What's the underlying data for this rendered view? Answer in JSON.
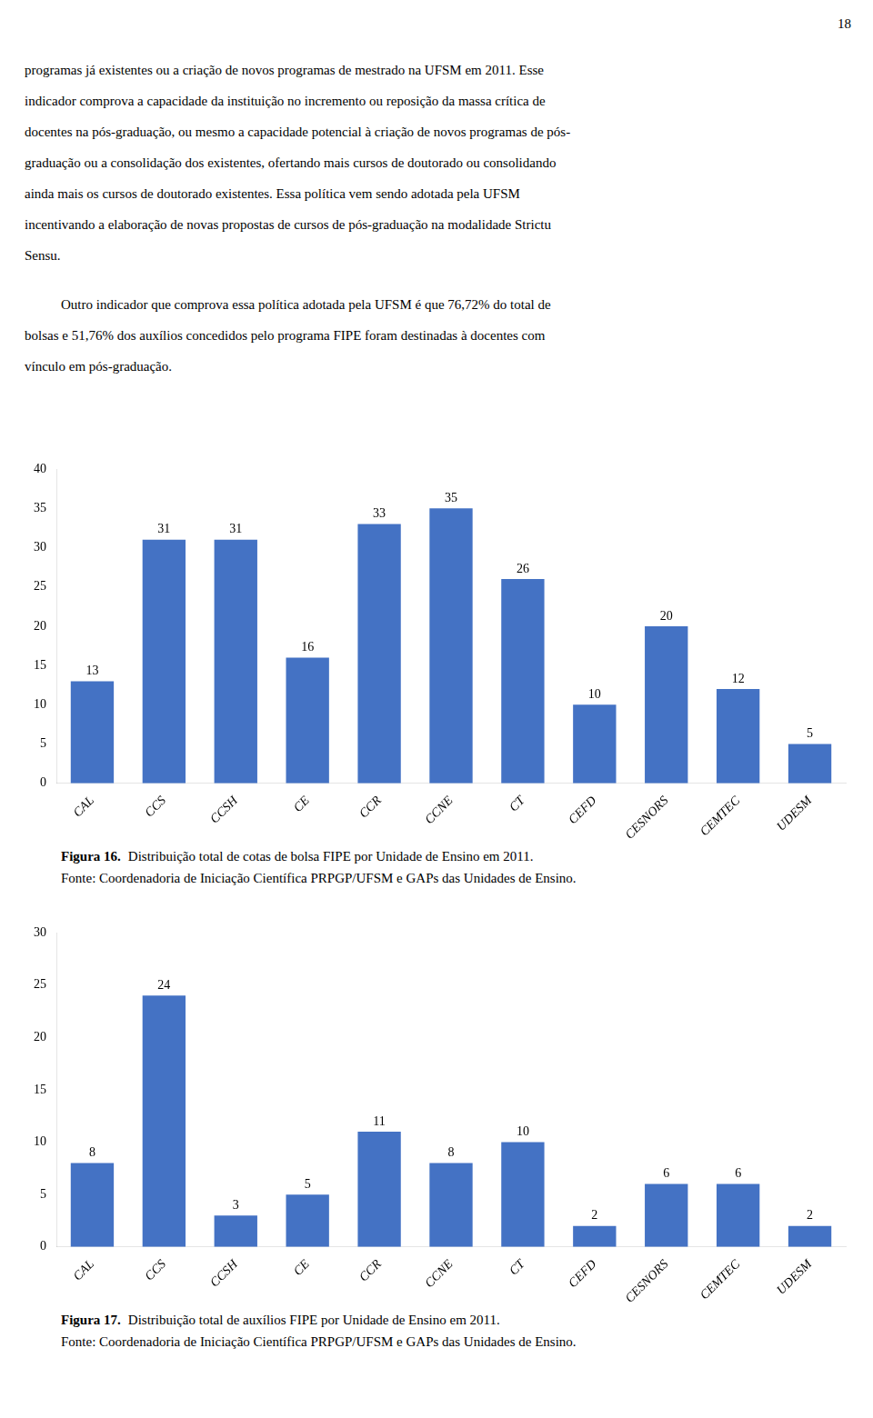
{
  "page_number": "18",
  "paragraphs": [
    [
      "programas já existentes ou a criação de novos programas de mestrado na UFSM em 2011. Esse",
      "indicador comprova a capacidade da instituição no incremento ou reposição da massa crítica de",
      "docentes na pós-graduação, ou mesmo a capacidade potencial à criação de novos programas de pós-",
      "graduação ou a consolidação dos existentes, ofertando mais cursos de doutorado ou consolidando",
      "ainda mais os cursos de doutorado existentes. Essa política vem sendo adotada pela UFSM",
      "incentivando a elaboração de novas propostas de cursos de pós-graduação na modalidade Strictu",
      "Sensu."
    ],
    [
      "Outro indicador que comprova essa política adotada pela UFSM é que 76,72% do total de",
      "bolsas e 51,76% dos auxílios concedidos pelo programa FIPE foram destinadas à docentes com",
      "vínculo em pós-graduação."
    ]
  ],
  "chart_data": [
    {
      "type": "bar",
      "title": "Figura 16.",
      "subtitle": "Distribuição total de cotas de bolsa FIPE por Unidade de Ensino em 2011.",
      "annotations": [
        "Fonte: Coordenadoria de Iniciação Científica PRPGP/UFSM e GAPs das Unidades de Ensino."
      ],
      "categories": [
        "CAL",
        "CCS",
        "CCSH",
        "CE",
        "CCR",
        "CCNE",
        "CT",
        "CEFD",
        "CESNORS",
        "CEMTEC",
        "UDESM"
      ],
      "values": [
        13,
        31,
        31,
        16,
        33,
        35,
        26,
        10,
        20,
        12,
        5
      ],
      "color": "#4472C4",
      "ylim": [
        0,
        40
      ],
      "yticks": [
        0,
        5,
        10,
        15,
        20,
        25,
        30,
        35,
        40
      ],
      "grid": false,
      "data_labels": true
    },
    {
      "type": "bar",
      "title": "Figura 17.",
      "subtitle": "Distribuição total de auxílios FIPE por Unidade de Ensino em 2011.",
      "annotations": [
        "Fonte: Coordenadoria de Iniciação Científica PRPGP/UFSM e GAPs das Unidades de Ensino."
      ],
      "categories": [
        "CAL",
        "CCS",
        "CCSH",
        "CE",
        "CCR",
        "CCNE",
        "CT",
        "CEFD",
        "CESNORS",
        "CEMTEC",
        "UDESM"
      ],
      "values": [
        8,
        24,
        3,
        5,
        11,
        8,
        10,
        2,
        6,
        6,
        2
      ],
      "color": "#4472C4",
      "ylim": [
        0,
        30
      ],
      "yticks": [
        0,
        5,
        10,
        15,
        20,
        25,
        30
      ],
      "grid": false,
      "data_labels": true
    }
  ]
}
